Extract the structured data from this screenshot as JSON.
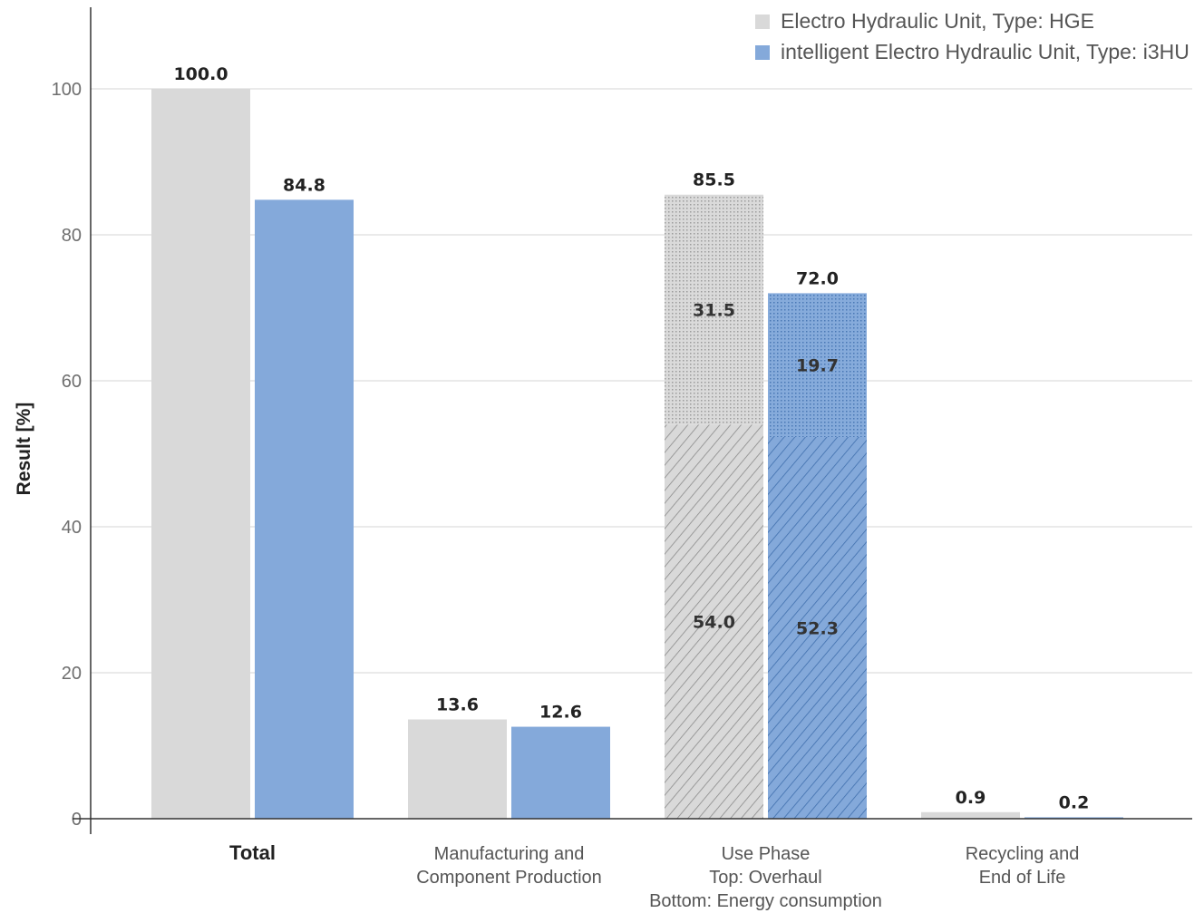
{
  "chart_data": {
    "type": "bar",
    "ylabel": "Result [%]",
    "ylim": [
      0,
      110
    ],
    "yticks": [
      0,
      20,
      40,
      60,
      80,
      100
    ],
    "grid": true,
    "legend_position": "top-right",
    "categories": [
      {
        "lines": [
          "Total"
        ],
        "bold": true
      },
      {
        "lines": [
          "Manufacturing and",
          "Component Production"
        ],
        "bold": false
      },
      {
        "lines": [
          "Use Phase",
          "Top: Overhaul",
          "Bottom: Energy consumption"
        ],
        "bold": false
      },
      {
        "lines": [
          "Recycling and",
          "End of Life"
        ],
        "bold": false
      }
    ],
    "series": [
      {
        "name": "Electro Hydraulic Unit, Type: HGE",
        "color": "#d9d9d9",
        "values": [
          100.0,
          13.6,
          85.5,
          0.9
        ],
        "labels": [
          "100.0",
          "13.6",
          "85.5",
          "0.9"
        ]
      },
      {
        "name": "intelligent Electro Hydraulic Unit, Type: i3HU",
        "color": "#84a9da",
        "values": [
          84.8,
          12.6,
          72.0,
          0.2
        ],
        "labels": [
          "84.8",
          "12.6",
          "72.0",
          "0.2"
        ]
      }
    ],
    "stacked_category_index": 2,
    "stack_segments": {
      "bottom": {
        "name": "Energy consumption",
        "pattern": "hatch",
        "values": [
          54.0,
          52.3
        ],
        "labels": [
          "54.0",
          "52.3"
        ]
      },
      "top": {
        "name": "Overhaul",
        "pattern": "dots",
        "values": [
          31.5,
          19.7
        ],
        "labels": [
          "31.5",
          "19.7"
        ]
      }
    }
  }
}
